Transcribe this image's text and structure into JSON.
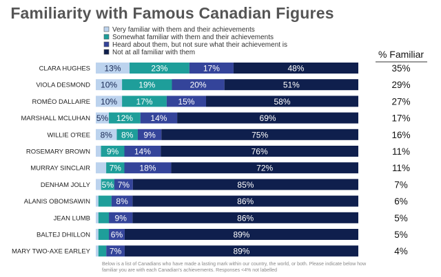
{
  "chart_data": {
    "type": "bar",
    "stacked": true,
    "orientation": "horizontal",
    "title": "Familiarity with Famous Canadian Figures",
    "side_header": "% Familiar",
    "categories": [
      "CLARA HUGHES",
      "VIOLA DESMOND",
      "ROMÉO DALLAIRE",
      "MARSHALL MCLUHAN",
      "WILLIE O'REE",
      "ROSEMARY BROWN",
      "MURRAY SINCLAIR",
      "DENHAM JOLLY",
      "ALANIS OBOMSAWIN",
      "JEAN LUMB",
      "BALTEJ DHILLON",
      "MARY TWO-AXE EARLEY"
    ],
    "series": [
      {
        "name": "Very familiar with them and their achievements",
        "color": "#bcd3ee",
        "values": [
          13,
          10,
          10,
          5,
          8,
          2,
          4,
          2,
          1,
          1,
          1,
          1
        ],
        "labels": [
          "13%",
          "10%",
          "10%",
          "5%",
          "8%",
          "",
          "",
          "",
          "",
          "",
          "",
          ""
        ]
      },
      {
        "name": "Somewhat familiar with them and their achievements",
        "color": "#1e9e9a",
        "values": [
          23,
          19,
          17,
          12,
          8,
          9,
          7,
          5,
          5,
          4,
          4,
          3
        ],
        "labels": [
          "23%",
          "19%",
          "17%",
          "12%",
          "8%",
          "9%",
          "7%",
          "5%",
          "",
          "",
          "",
          ""
        ]
      },
      {
        "name": "Heard about them, but not sure what their achievement is",
        "color": "#34449a",
        "values": [
          17,
          20,
          15,
          14,
          9,
          14,
          18,
          7,
          8,
          9,
          6,
          7
        ],
        "labels": [
          "17%",
          "20%",
          "15%",
          "14%",
          "9%",
          "14%",
          "18%",
          "7%",
          "8%",
          "9%",
          "6%",
          "7%"
        ]
      },
      {
        "name": "Not at all familiar with them",
        "color": "#0f1f4d",
        "values": [
          48,
          51,
          58,
          69,
          75,
          76,
          72,
          85,
          86,
          86,
          89,
          89
        ],
        "labels": [
          "48%",
          "51%",
          "58%",
          "69%",
          "75%",
          "76%",
          "72%",
          "85%",
          "86%",
          "86%",
          "89%",
          "89%"
        ]
      }
    ],
    "familiar_pct": [
      "35%",
      "29%",
      "27%",
      "17%",
      "16%",
      "11%",
      "11%",
      "7%",
      "6%",
      "5%",
      "5%",
      "4%"
    ],
    "xlim": [
      0,
      100
    ],
    "legend_position": "top",
    "footnote": "Below is a list of Canadians who have made a lasting mark within our country, the world, or both. Please indicate below how familiar you are with each Canadian's achievements. Responses <4% not labelled"
  }
}
